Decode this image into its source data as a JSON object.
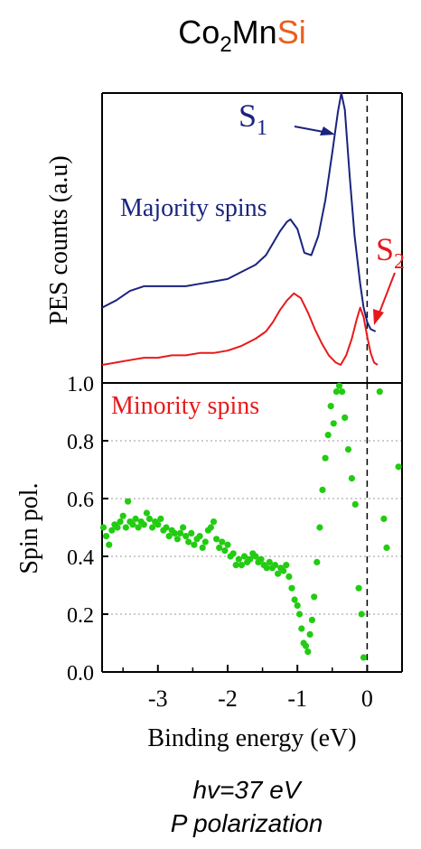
{
  "title": {
    "prefix": "Co",
    "sub": "2",
    "mid": "Mn",
    "highlight": "Si",
    "highlight_color": "#e8601c"
  },
  "footer": {
    "line1": "hv=37 eV",
    "line2": "P polarization"
  },
  "chart_data": [
    {
      "type": "line",
      "ylabel": "PES counts (a.u)",
      "xlim": [
        -3.8,
        0.5
      ],
      "annotations": {
        "majority_label": "Majority spins",
        "minority_label": "Minority spins",
        "s1": {
          "main": "S",
          "sub": "1"
        },
        "s2": {
          "main": "S",
          "sub": "2"
        }
      },
      "series": [
        {
          "name": "Majority spins",
          "color": "#1a237e",
          "points": [
            [
              -3.8,
              0.1
            ],
            [
              -3.6,
              0.13
            ],
            [
              -3.4,
              0.17
            ],
            [
              -3.2,
              0.19
            ],
            [
              -3.0,
              0.19
            ],
            [
              -2.8,
              0.19
            ],
            [
              -2.6,
              0.19
            ],
            [
              -2.4,
              0.2
            ],
            [
              -2.2,
              0.21
            ],
            [
              -2.0,
              0.22
            ],
            [
              -1.8,
              0.25
            ],
            [
              -1.6,
              0.28
            ],
            [
              -1.45,
              0.32
            ],
            [
              -1.35,
              0.37
            ],
            [
              -1.25,
              0.42
            ],
            [
              -1.15,
              0.46
            ],
            [
              -1.1,
              0.47
            ],
            [
              -1.0,
              0.43
            ],
            [
              -0.9,
              0.33
            ],
            [
              -0.8,
              0.32
            ],
            [
              -0.7,
              0.4
            ],
            [
              -0.6,
              0.55
            ],
            [
              -0.5,
              0.75
            ],
            [
              -0.42,
              0.92
            ],
            [
              -0.37,
              1.0
            ],
            [
              -0.32,
              0.93
            ],
            [
              -0.25,
              0.65
            ],
            [
              -0.18,
              0.4
            ],
            [
              -0.1,
              0.2
            ],
            [
              -0.05,
              0.1
            ],
            [
              0.0,
              0.04
            ],
            [
              0.05,
              0.01
            ],
            [
              0.12,
              0.0
            ]
          ]
        },
        {
          "name": "Minority spins",
          "color": "#e8191b",
          "points": [
            [
              -3.8,
              0.0
            ],
            [
              -3.6,
              0.01
            ],
            [
              -3.4,
              0.02
            ],
            [
              -3.2,
              0.03
            ],
            [
              -3.0,
              0.03
            ],
            [
              -2.8,
              0.04
            ],
            [
              -2.6,
              0.04
            ],
            [
              -2.4,
              0.05
            ],
            [
              -2.2,
              0.05
            ],
            [
              -2.0,
              0.06
            ],
            [
              -1.8,
              0.08
            ],
            [
              -1.6,
              0.11
            ],
            [
              -1.45,
              0.14
            ],
            [
              -1.35,
              0.18
            ],
            [
              -1.25,
              0.23
            ],
            [
              -1.15,
              0.27
            ],
            [
              -1.05,
              0.3
            ],
            [
              -0.95,
              0.28
            ],
            [
              -0.85,
              0.22
            ],
            [
              -0.75,
              0.15
            ],
            [
              -0.65,
              0.09
            ],
            [
              -0.55,
              0.04
            ],
            [
              -0.45,
              0.01
            ],
            [
              -0.38,
              0.0
            ],
            [
              -0.3,
              0.04
            ],
            [
              -0.22,
              0.11
            ],
            [
              -0.15,
              0.19
            ],
            [
              -0.1,
              0.24
            ],
            [
              -0.05,
              0.2
            ],
            [
              0.0,
              0.12
            ],
            [
              0.05,
              0.05
            ],
            [
              0.1,
              0.01
            ],
            [
              0.15,
              0.0
            ]
          ]
        }
      ]
    },
    {
      "type": "scatter",
      "xlabel": "Binding energy (eV)",
      "ylabel": "Spin pol.",
      "xlim": [
        -3.8,
        0.5
      ],
      "ylim": [
        0.0,
        1.0
      ],
      "xticks": [
        -3,
        -2,
        -1,
        0
      ],
      "xtick_labels": [
        "-3",
        "-2",
        "-1",
        "0"
      ],
      "yticks": [
        0.0,
        0.2,
        0.4,
        0.6,
        0.8,
        1.0
      ],
      "ytick_labels": [
        "0.0",
        "0.2",
        "0.4",
        "0.6",
        "0.8",
        "1.0"
      ],
      "grid": "horizontal dotted",
      "reference_line_x": 0,
      "series": [
        {
          "name": "Spin polarization",
          "color": "#22cc11",
          "points": [
            [
              -3.78,
              0.5
            ],
            [
              -3.74,
              0.47
            ],
            [
              -3.7,
              0.44
            ],
            [
              -3.66,
              0.49
            ],
            [
              -3.62,
              0.51
            ],
            [
              -3.58,
              0.5
            ],
            [
              -3.54,
              0.52
            ],
            [
              -3.5,
              0.54
            ],
            [
              -3.46,
              0.5
            ],
            [
              -3.43,
              0.59
            ],
            [
              -3.4,
              0.52
            ],
            [
              -3.36,
              0.51
            ],
            [
              -3.32,
              0.53
            ],
            [
              -3.28,
              0.5
            ],
            [
              -3.24,
              0.52
            ],
            [
              -3.2,
              0.51
            ],
            [
              -3.16,
              0.55
            ],
            [
              -3.12,
              0.53
            ],
            [
              -3.08,
              0.5
            ],
            [
              -3.04,
              0.52
            ],
            [
              -3.0,
              0.51
            ],
            [
              -2.96,
              0.53
            ],
            [
              -2.92,
              0.49
            ],
            [
              -2.88,
              0.5
            ],
            [
              -2.84,
              0.47
            ],
            [
              -2.8,
              0.49
            ],
            [
              -2.76,
              0.48
            ],
            [
              -2.72,
              0.46
            ],
            [
              -2.68,
              0.48
            ],
            [
              -2.64,
              0.5
            ],
            [
              -2.6,
              0.47
            ],
            [
              -2.56,
              0.45
            ],
            [
              -2.52,
              0.48
            ],
            [
              -2.48,
              0.44
            ],
            [
              -2.44,
              0.46
            ],
            [
              -2.4,
              0.47
            ],
            [
              -2.36,
              0.43
            ],
            [
              -2.32,
              0.45
            ],
            [
              -2.28,
              0.49
            ],
            [
              -2.24,
              0.5
            ],
            [
              -2.2,
              0.52
            ],
            [
              -2.16,
              0.46
            ],
            [
              -2.12,
              0.43
            ],
            [
              -2.08,
              0.45
            ],
            [
              -2.04,
              0.42
            ],
            [
              -2.0,
              0.44
            ],
            [
              -1.96,
              0.4
            ],
            [
              -1.92,
              0.41
            ],
            [
              -1.88,
              0.37
            ],
            [
              -1.84,
              0.39
            ],
            [
              -1.8,
              0.37
            ],
            [
              -1.76,
              0.4
            ],
            [
              -1.72,
              0.38
            ],
            [
              -1.68,
              0.39
            ],
            [
              -1.64,
              0.41
            ],
            [
              -1.6,
              0.4
            ],
            [
              -1.56,
              0.38
            ],
            [
              -1.52,
              0.39
            ],
            [
              -1.48,
              0.37
            ],
            [
              -1.44,
              0.36
            ],
            [
              -1.4,
              0.38
            ],
            [
              -1.36,
              0.36
            ],
            [
              -1.32,
              0.37
            ],
            [
              -1.28,
              0.34
            ],
            [
              -1.24,
              0.36
            ],
            [
              -1.2,
              0.35
            ],
            [
              -1.16,
              0.37
            ],
            [
              -1.12,
              0.33
            ],
            [
              -1.08,
              0.29
            ],
            [
              -1.04,
              0.25
            ],
            [
              -1.0,
              0.23
            ],
            [
              -0.97,
              0.2
            ],
            [
              -0.94,
              0.15
            ],
            [
              -0.91,
              0.1
            ],
            [
              -0.88,
              0.09
            ],
            [
              -0.85,
              0.07
            ],
            [
              -0.82,
              0.13
            ],
            [
              -0.79,
              0.18
            ],
            [
              -0.76,
              0.26
            ],
            [
              -0.72,
              0.38
            ],
            [
              -0.68,
              0.5
            ],
            [
              -0.64,
              0.63
            ],
            [
              -0.6,
              0.74
            ],
            [
              -0.56,
              0.82
            ],
            [
              -0.52,
              0.92
            ],
            [
              -0.48,
              0.86
            ],
            [
              -0.44,
              0.97
            ],
            [
              -0.4,
              0.99
            ],
            [
              -0.36,
              0.97
            ],
            [
              -0.32,
              0.88
            ],
            [
              -0.27,
              0.77
            ],
            [
              -0.22,
              0.67
            ],
            [
              -0.17,
              0.58
            ],
            [
              -0.12,
              0.29
            ],
            [
              -0.08,
              0.2
            ],
            [
              -0.05,
              0.05
            ],
            [
              0.18,
              0.97
            ],
            [
              0.24,
              0.53
            ],
            [
              0.28,
              0.43
            ],
            [
              0.45,
              0.71
            ]
          ]
        }
      ]
    }
  ]
}
